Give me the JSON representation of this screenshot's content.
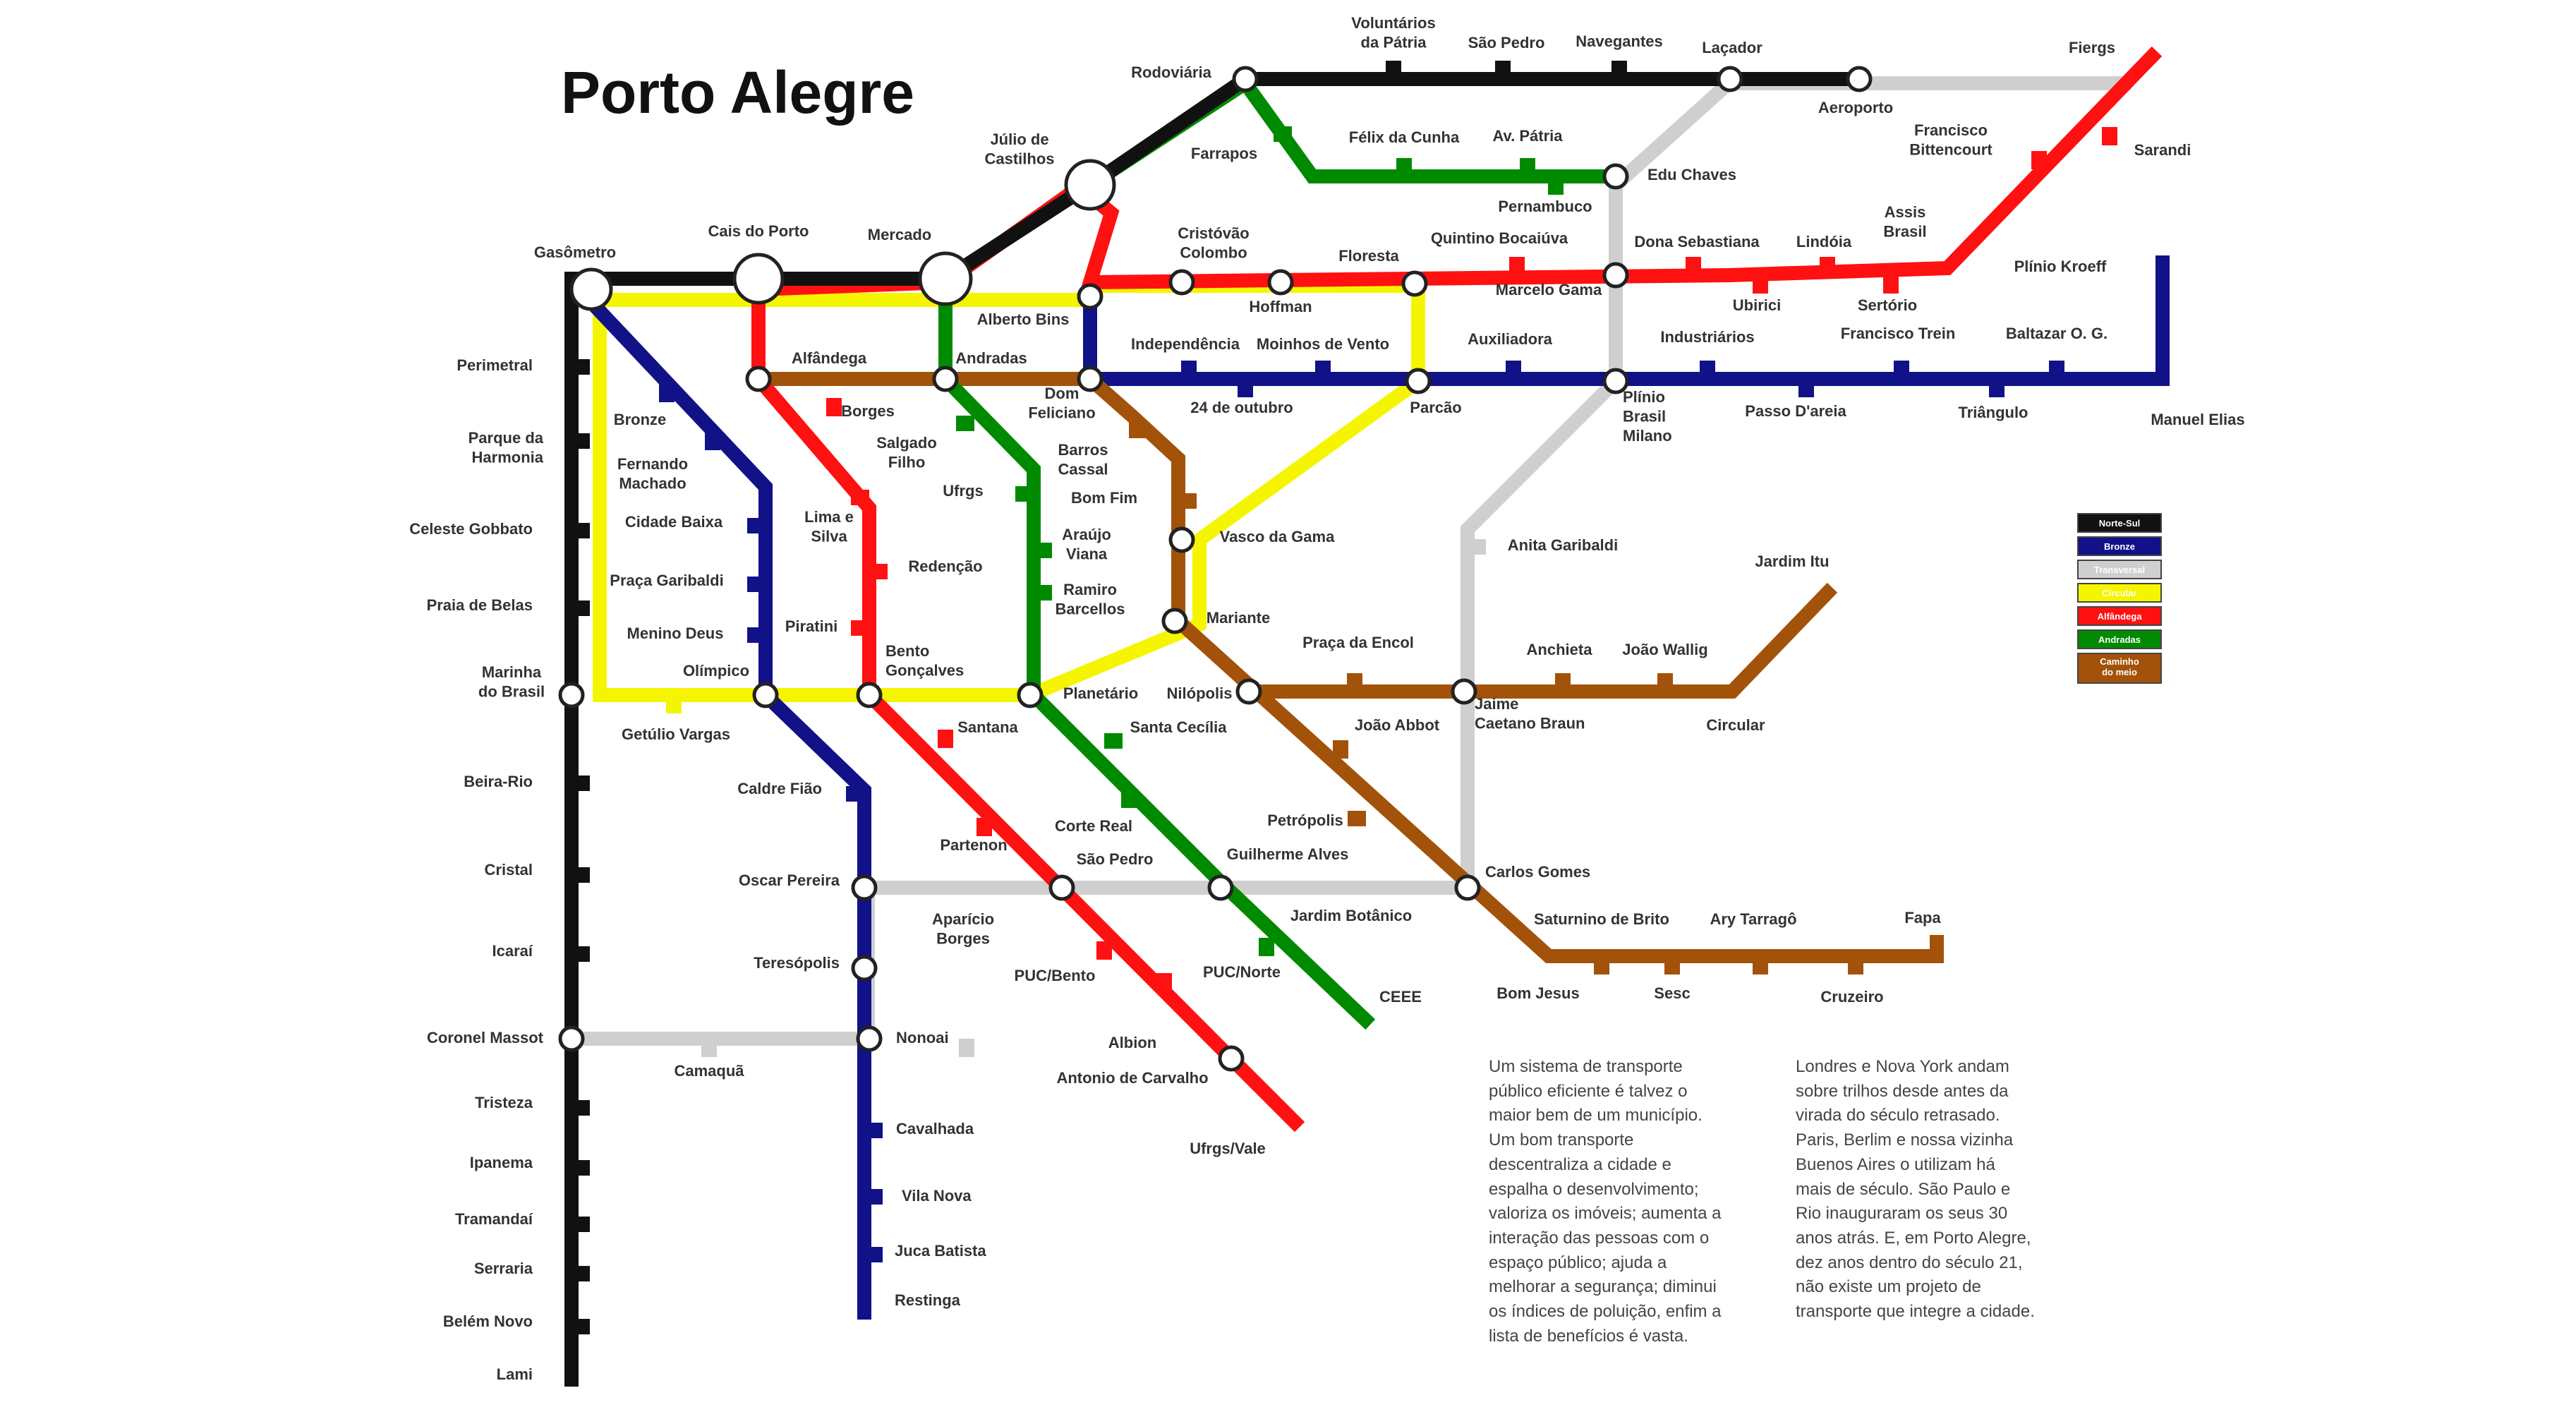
{
  "title": "Porto Alegre",
  "colors": {
    "norte_sul": "#111111",
    "bronze": "#111188",
    "transversal": "#cfcfcf",
    "circular": "#f5f500",
    "alfandega": "#ff1111",
    "andradas": "#008a00",
    "caminho_do_meio": "#a3520a"
  },
  "legend": [
    {
      "label": "Norte-Sul",
      "color": "#111111"
    },
    {
      "label": "Bronze",
      "color": "#111188"
    },
    {
      "label": "Transversal",
      "color": "#cfcfcf"
    },
    {
      "label": "Circular",
      "color": "#f5f500"
    },
    {
      "label": "Alfândega",
      "color": "#ff1111"
    },
    {
      "label": "Andradas",
      "color": "#008a00"
    },
    {
      "label": "Caminho\ndo meio",
      "color": "#a3520a"
    }
  ],
  "stations": {
    "voluntarios": "Voluntários\nda Pátria",
    "sao_pedro_top": "São Pedro",
    "navegantes": "Navegantes",
    "lacador": "Laçador",
    "fiergs": "Fiergs",
    "rodoviaria": "Rodoviária",
    "aeroporto": "Aeroporto",
    "julio": "Júlio de\nCastilhos",
    "farrapos": "Farrapos",
    "felix": "Félix da Cunha",
    "av_patria": "Av. Pátria",
    "edu_chaves": "Edu Chaves",
    "francisco_bitt": "Francisco\nBittencourt",
    "sarandi": "Sarandi",
    "pernambuco": "Pernambuco",
    "assis_brasil": "Assis\nBrasil",
    "cais": "Cais do Porto",
    "mercado": "Mercado",
    "gasometro": "Gasômetro",
    "cristovao": "Cristóvão\nColombo",
    "floresta": "Floresta",
    "quintino": "Quintino Bocaiúva",
    "dona_sebastiana": "Dona Sebastiana",
    "lindoia": "Lindóia",
    "plinio_kroeff": "Plínio Kroeff",
    "hoffman": "Hoffman",
    "marcelo_gama": "Marcelo Gama",
    "ubirici": "Ubirici",
    "sertorio": "Sertório",
    "alberto_bins": "Alberto Bins",
    "independencia": "Independência",
    "moinhos": "Moinhos de Vento",
    "auxiliadora": "Auxiliadora",
    "industriarios": "Industriários",
    "francisco_trein": "Francisco Trein",
    "baltazar": "Baltazar O. G.",
    "alfandega": "Alfândega",
    "andradas": "Andradas",
    "perimetral": "Perimetral",
    "bronze": "Bronze",
    "borges": "Borges",
    "dom_feliciano": "Dom\nFeliciano",
    "outubro": "24 de outubro",
    "parcao": "Parcão",
    "plinio_brasil": "Plínio\nBrasil\nMilano",
    "passo_areia": "Passo D'areia",
    "triangulo": "Triângulo",
    "manuel_elias": "Manuel Elias",
    "parque_harmonia": "Parque da\nHarmonia",
    "fernando_machado": "Fernando\nMachado",
    "salgado_filho": "Salgado\nFilho",
    "barros_cassal": "Barros\nCassal",
    "bom_fim": "Bom Fim",
    "ufrgs": "Ufrgs",
    "celeste": "Celeste Gobbato",
    "cidade_baixa": "Cidade Baixa",
    "lima_silva": "Lima e\nSilva",
    "araujo": "Araújo\nViana",
    "vasco": "Vasco da Gama",
    "anita": "Anita Garibaldi",
    "jardim_itu": "Jardim Itu",
    "redencao": "Redenção",
    "praca_garibaldi": "Praça Garibaldi",
    "ramiro": "Ramiro\nBarcellos",
    "praia_belas": "Praia de Belas",
    "mariante": "Mariante",
    "menino_deus": "Menino Deus",
    "piratini": "Piratini",
    "praca_encol": "Praça da Encol",
    "anchieta": "Anchieta",
    "joao_wallig": "João Wallig",
    "bento": "Bento\nGonçalves",
    "marinha": "Marinha\ndo Brasil",
    "olimpico": "Olímpico",
    "planetario": "Planetário",
    "nilopolis": "Nilópolis",
    "jaime": "Jaime\nCaetano Braun",
    "circular": "Circular",
    "getulio": "Getúlio Vargas",
    "santana": "Santana",
    "santa_cecilia": "Santa Cecília",
    "joao_abbot": "João Abbot",
    "beira_rio": "Beira-Rio",
    "caldre": "Caldre Fião",
    "petropolis": "Petrópolis",
    "corte_real": "Corte Real",
    "partenon": "Partenon",
    "sao_pedro": "São Pedro",
    "guilherme": "Guilherme Alves",
    "carlos_gomes": "Carlos Gomes",
    "cristal": "Cristal",
    "oscar": "Oscar Pereira",
    "aparicio": "Aparício\nBorges",
    "jardim_botanico": "Jardim Botânico",
    "saturnino": "Saturnino de Brito",
    "ary": "Ary Tarragô",
    "fapa": "Fapa",
    "icarai": "Icaraí",
    "teresopolis": "Teresópolis",
    "puc_bento": "PUC/Bento",
    "puc_norte": "PUC/Norte",
    "ceee": "CEEE",
    "bom_jesus": "Bom Jesus",
    "sesc": "Sesc",
    "cruzeiro": "Cruzeiro",
    "coronel": "Coronel Massot",
    "nonoai": "Nonoai",
    "albion": "Albion",
    "camaqua": "Camaquã",
    "antonio": "Antonio de Carvalho",
    "tristeza": "Tristeza",
    "cavalhada": "Cavalhada",
    "ufrgs_vale": "Ufrgs/Vale",
    "ipanema": "Ipanema",
    "vila_nova": "Vila Nova",
    "tramandai": "Tramandaí",
    "juca": "Juca Batista",
    "serraria": "Serraria",
    "restinga": "Restinga",
    "belem": "Belém Novo",
    "lami": "Lami"
  },
  "text_left": "Um sistema de transporte\npúblico eficiente é talvez o\nmaior bem de um município.\nUm bom transporte\ndescentraliza a cidade e\nespalha o desenvolvimento;\nvaloriza os imóveis; aumenta a\ninteração das pessoas com o\nespaço público; ajuda a\nmelhorar a segurança; diminui\nos índices de poluição, enfim a\nlista de benefícios é vasta.",
  "text_right": "Londres e Nova York andam\nsobre trilhos desde antes da\nvirada do século retrasado.\nParis, Berlim e nossa vizinha\nBuenos Aires o utilizam há\nmais de século. São Paulo e\nRio inauguraram os seus 30\nanos atrás. E, em Porto Alegre,\ndez anos dentro do século 21,\nnão existe um projeto de\ntransporte que integre a cidade."
}
